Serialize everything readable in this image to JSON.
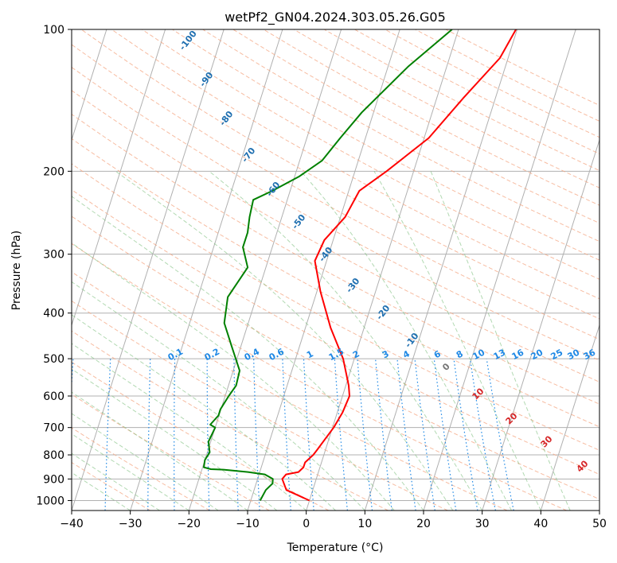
{
  "chart_data": {
    "type": "line",
    "title": "wetPf2_GN04.2024.303.05.26.G05",
    "xlabel": "Temperature (°C)",
    "ylabel": "Pressure (hPa)",
    "xlim": [
      -40,
      50
    ],
    "ylim": [
      1050,
      100
    ],
    "y_scale": "log",
    "grid": true,
    "x_ticks": [
      -40,
      -30,
      -20,
      -10,
      0,
      10,
      20,
      30,
      40,
      50
    ],
    "y_ticks": [
      100,
      200,
      300,
      400,
      500,
      600,
      700,
      800,
      900,
      1000
    ],
    "series": [
      {
        "color": "#ff0000",
        "x": [
          0.0,
          -4.5,
          -5.8,
          -5.4,
          -3.4,
          -2.8,
          -2.8,
          -1.8,
          -1.4,
          0.2,
          0.9,
          1.2,
          0.5,
          -1.9,
          -5.7,
          -9.4,
          -12.0,
          -11.5,
          -9.2,
          -8.2,
          -4.6,
          0.8,
          4.5,
          8.6,
          9.8
        ],
        "y": [
          1000,
          950,
          900,
          880,
          870,
          850,
          830,
          800,
          780,
          700,
          650,
          600,
          570,
          500,
          430,
          360,
          310,
          280,
          250,
          220,
          200,
          170,
          140,
          115,
          100
        ]
      },
      {
        "color": "#008000",
        "x": [
          -8.4,
          -8.0,
          -7.2,
          -7.4,
          -9.0,
          -12.0,
          -16.3,
          -18.5,
          -19.8,
          -20.0,
          -19.6,
          -20.4,
          -20.0,
          -21.0,
          -20.1,
          -20.1,
          -19.4,
          -18.7,
          -18.9,
          -21.6,
          -24.1,
          -24.9,
          -23.1,
          -25.0,
          -25.0,
          -25.5,
          -25.8,
          -23.0,
          -19.2,
          -16.2,
          -14.3,
          -12.0,
          -6.6,
          -1.1
        ],
        "y": [
          1000,
          950,
          920,
          900,
          880,
          870,
          860,
          858,
          850,
          820,
          790,
          750,
          700,
          690,
          660,
          640,
          600,
          570,
          530,
          470,
          420,
          370,
          320,
          290,
          270,
          250,
          230,
          220,
          205,
          190,
          170,
          150,
          120,
          100
        ]
      }
    ],
    "dry_adiabat_labels": [
      "-100",
      "-90",
      "-80",
      "-70",
      "-60",
      "-50",
      "-40",
      "-30",
      "-20",
      "-10"
    ],
    "moist_adiabat_labels": [
      "0",
      "10",
      "20",
      "30",
      "40"
    ],
    "mixing_ratio_labels": [
      "0.1",
      "0.2",
      "0.4",
      "0.6",
      "1",
      "1.5",
      "2",
      "3",
      "4",
      "6",
      "8",
      "10",
      "13",
      "16",
      "20",
      "25",
      "30",
      "36"
    ]
  }
}
